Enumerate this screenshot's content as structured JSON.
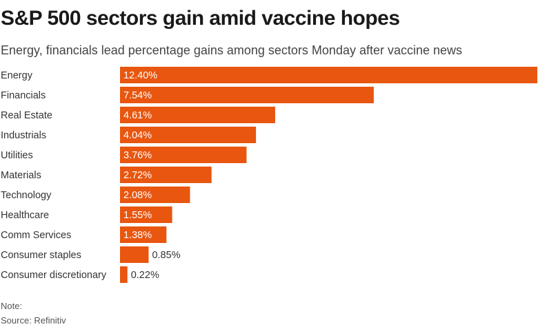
{
  "header": {
    "title": "S&P 500 sectors gain amid vaccine hopes",
    "subtitle": "Energy, financials lead percentage gains among sectors Monday after vaccine news"
  },
  "footer": {
    "note": "Note:",
    "source": "Source: Refinitiv"
  },
  "colors": {
    "bar": "#e8560f",
    "label_inside": "#ffffff",
    "label_outside": "#333333",
    "category_text": "#333333"
  },
  "chart_data": {
    "type": "bar",
    "orientation": "horizontal",
    "title": "S&P 500 sectors gain amid vaccine hopes",
    "subtitle": "Energy, financials lead percentage gains among sectors Monday after vaccine news",
    "xlabel": "",
    "ylabel": "",
    "xlim": [
      0,
      12.4
    ],
    "grid": false,
    "legend": "none",
    "categories": [
      "Energy",
      "Financials",
      "Real Estate",
      "Industrials",
      "Utilities",
      "Materials",
      "Technology",
      "Healthcare",
      "Comm Services",
      "Consumer staples",
      "Consumer discretionary"
    ],
    "values": [
      12.4,
      7.54,
      4.61,
      4.04,
      3.76,
      2.72,
      2.08,
      1.55,
      1.38,
      0.85,
      0.22
    ],
    "data_labels": [
      "12.40%",
      "7.54%",
      "4.61%",
      "4.04%",
      "3.76%",
      "2.72%",
      "2.08%",
      "1.55%",
      "1.38%",
      "0.85%",
      "0.22%"
    ]
  }
}
